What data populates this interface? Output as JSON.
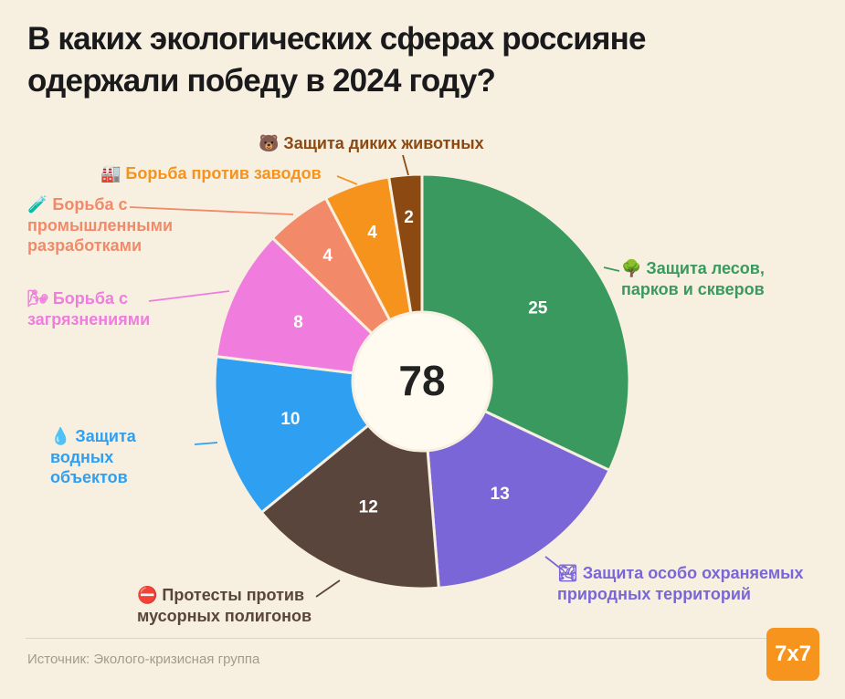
{
  "chart_data": {
    "type": "pie",
    "title": "В каких экологических сферах россияне одержали победу в 2024 году?",
    "total": 78,
    "legend_position": "around",
    "segments": [
      {
        "label": "Защита лесов, парков и скверов",
        "emoji": "🌳",
        "icon": "tree-icon",
        "value": 25,
        "color": "#39995E"
      },
      {
        "label": "Защита особо охраняемых природных территорий",
        "emoji": "🏞",
        "icon": "national-park-icon",
        "value": 13,
        "color": "#7A66D6"
      },
      {
        "label": "Протесты против мусорных полигонов",
        "emoji": "⛔",
        "icon": "no-entry-icon",
        "value": 12,
        "color": "#5A453C"
      },
      {
        "label": "Защита водных объектов",
        "emoji": "💧",
        "icon": "water-drop-icon",
        "value": 10,
        "color": "#2F9FF2"
      },
      {
        "label": "Борьба с загрязнениями",
        "emoji": "🌬",
        "icon": "wind-face-icon",
        "value": 8,
        "color": "#F07CDE"
      },
      {
        "label": "Борьба с промышленными разработками",
        "emoji": "🧪",
        "icon": "test-tube-icon",
        "value": 4,
        "color": "#F28A69"
      },
      {
        "label": "Борьба против заводов",
        "emoji": "🏭",
        "icon": "factory-icon",
        "value": 4,
        "color": "#F6931D"
      },
      {
        "label": "Защита диких животных",
        "emoji": "🐻",
        "icon": "bear-icon",
        "value": 2,
        "color": "#8C4A12"
      }
    ]
  },
  "footer": {
    "source": "Источник: Эколого-кризисная группа",
    "logo": "7x7"
  },
  "colors": {
    "background": "#F7F0E1",
    "logo_bg": "#F7941D",
    "center_hole": "#FFFBF1"
  }
}
